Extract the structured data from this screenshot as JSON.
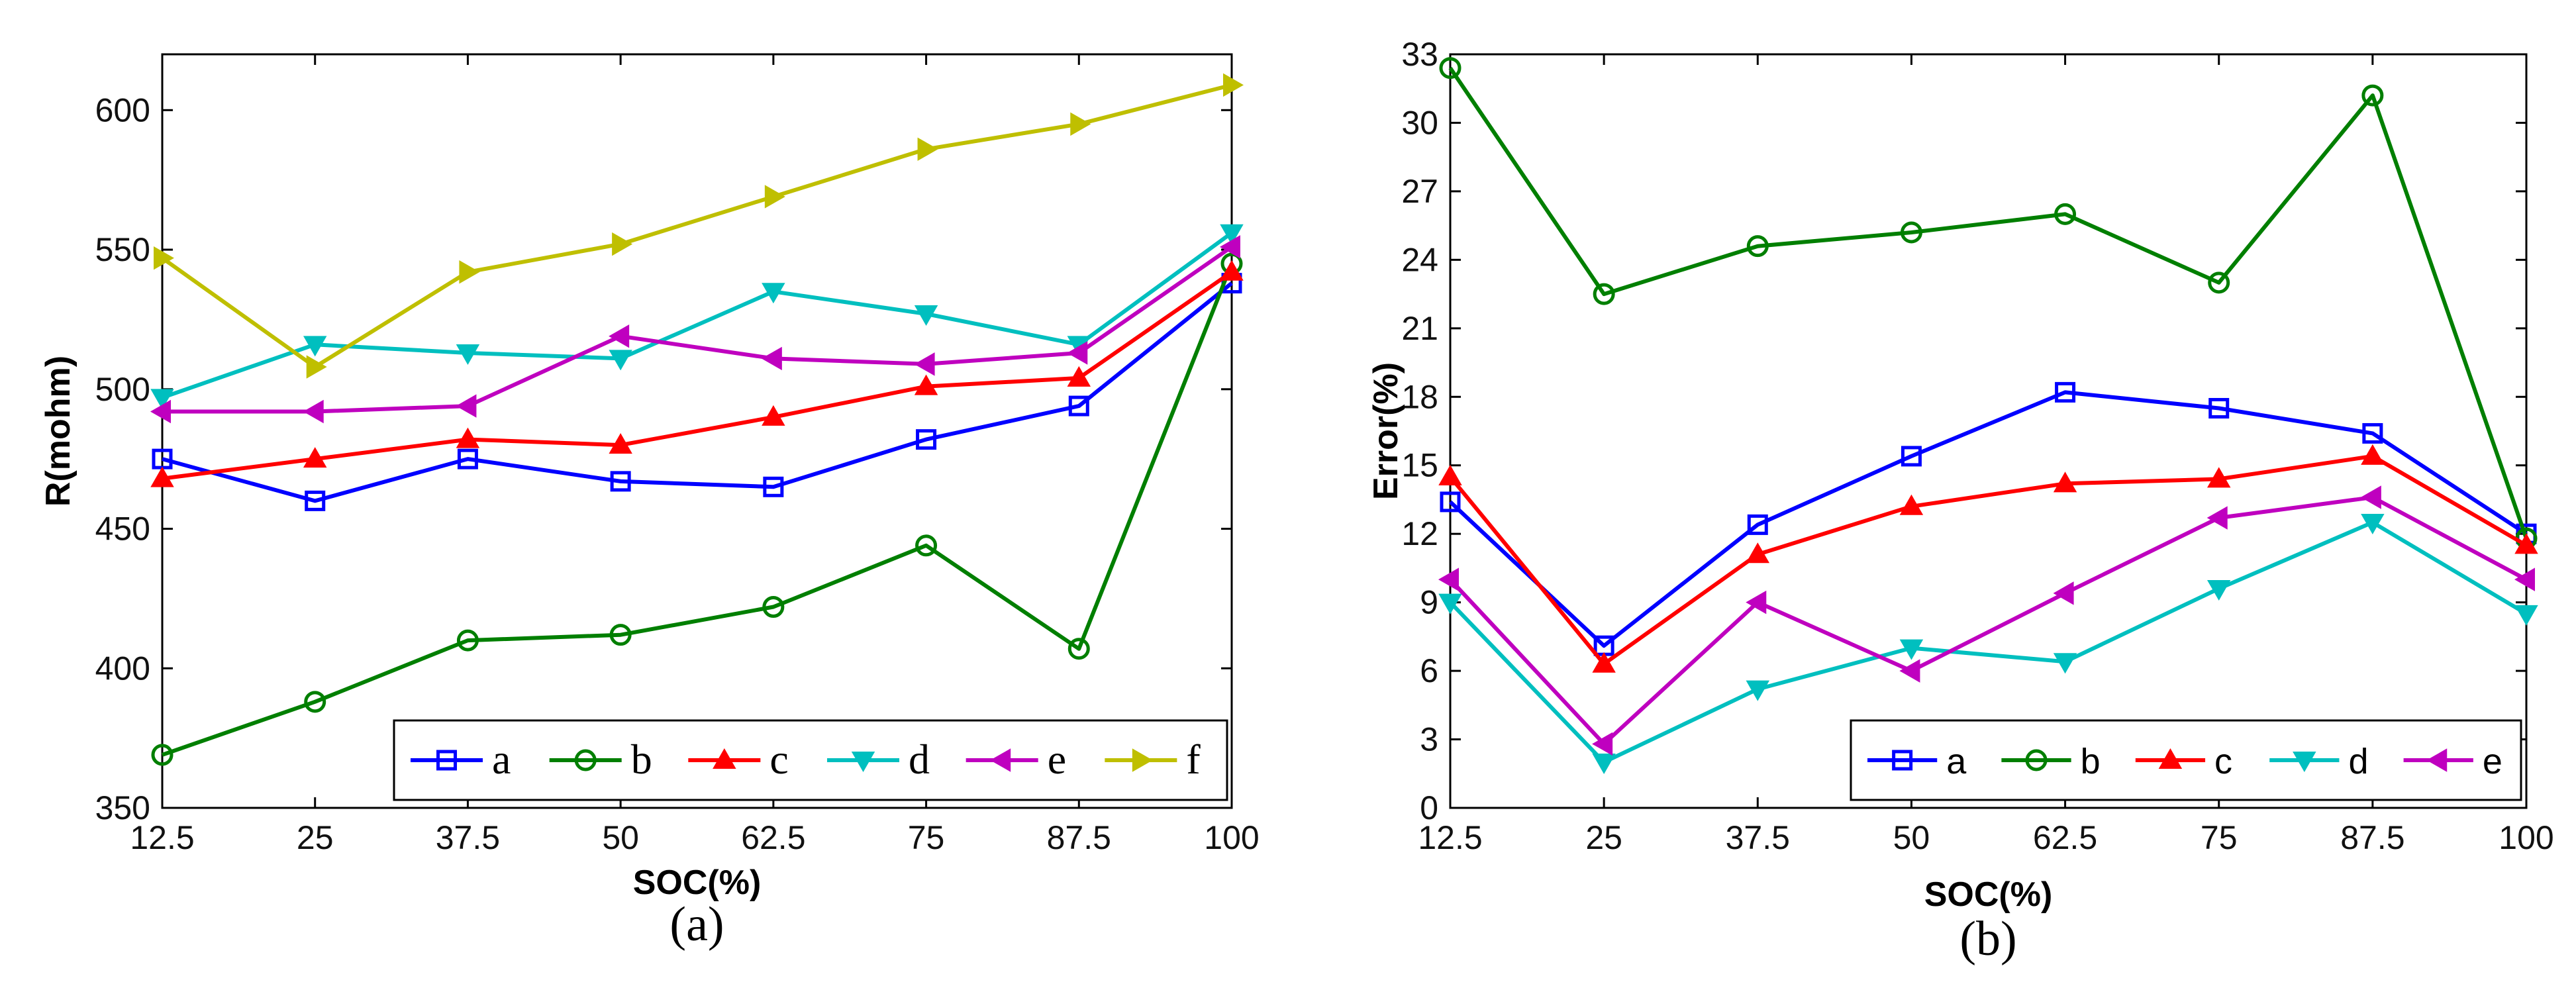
{
  "chart_data": [
    {
      "type": "line",
      "caption": "(a)",
      "xlabel": "SOC(%)",
      "ylabel": "R(mohm)",
      "categories": [
        "12.5",
        "25",
        "37.5",
        "50",
        "62.5",
        "75",
        "87.5",
        "100"
      ],
      "x": [
        12.5,
        25,
        37.5,
        50,
        62.5,
        75,
        87.5,
        100
      ],
      "xlim": [
        12.5,
        100
      ],
      "ylim": [
        350,
        620
      ],
      "yticks": [
        350,
        400,
        450,
        500,
        550,
        600
      ],
      "legend_position": "bottom-right",
      "series": [
        {
          "name": "a",
          "color": "#0000ff",
          "marker": "square",
          "values": [
            475,
            460,
            475,
            467,
            465,
            482,
            494,
            538
          ]
        },
        {
          "name": "b",
          "color": "#007f00",
          "marker": "circle",
          "values": [
            369,
            388,
            410,
            412,
            422,
            444,
            407,
            545
          ]
        },
        {
          "name": "c",
          "color": "#ff0000",
          "marker": "triangle-up",
          "values": [
            468,
            475,
            482,
            480,
            490,
            501,
            504,
            542
          ]
        },
        {
          "name": "d",
          "color": "#00bfbf",
          "marker": "triangle-down",
          "values": [
            497,
            516,
            513,
            511,
            535,
            527,
            516,
            556
          ]
        },
        {
          "name": "e",
          "color": "#bf00bf",
          "marker": "triangle-left",
          "values": [
            492,
            492,
            494,
            519,
            511,
            509,
            513,
            551
          ]
        },
        {
          "name": "f",
          "color": "#bfbf00",
          "marker": "triangle-right",
          "values": [
            547,
            508,
            542,
            552,
            569,
            586,
            595,
            609
          ]
        }
      ]
    },
    {
      "type": "line",
      "caption": "(b)",
      "xlabel": "SOC(%)",
      "ylabel": "Error(%)",
      "categories": [
        "12.5",
        "25",
        "37.5",
        "50",
        "62.5",
        "75",
        "87.5",
        "100"
      ],
      "x": [
        12.5,
        25,
        37.5,
        50,
        62.5,
        75,
        87.5,
        100
      ],
      "xlim": [
        12.5,
        100
      ],
      "ylim": [
        0,
        33
      ],
      "yticks": [
        0,
        3,
        6,
        9,
        12,
        15,
        18,
        21,
        24,
        27,
        30,
        33
      ],
      "legend_position": "bottom-right",
      "series": [
        {
          "name": "a",
          "color": "#0000ff",
          "marker": "square",
          "values": [
            13.4,
            7.1,
            12.4,
            15.4,
            18.2,
            17.5,
            16.4,
            12.0
          ]
        },
        {
          "name": "b",
          "color": "#007f00",
          "marker": "circle",
          "values": [
            32.4,
            22.5,
            24.6,
            25.2,
            26.0,
            23.0,
            31.2,
            11.8
          ]
        },
        {
          "name": "c",
          "color": "#ff0000",
          "marker": "triangle-up",
          "values": [
            14.5,
            6.3,
            11.1,
            13.2,
            14.2,
            14.4,
            15.4,
            11.5
          ]
        },
        {
          "name": "d",
          "color": "#00bfbf",
          "marker": "triangle-down",
          "values": [
            9.0,
            2.0,
            5.2,
            7.0,
            6.4,
            9.6,
            12.5,
            8.5
          ]
        },
        {
          "name": "e",
          "color": "#bf00bf",
          "marker": "triangle-left",
          "values": [
            10.0,
            2.8,
            9.0,
            6.0,
            9.4,
            12.7,
            13.6,
            10.0
          ]
        }
      ]
    }
  ]
}
